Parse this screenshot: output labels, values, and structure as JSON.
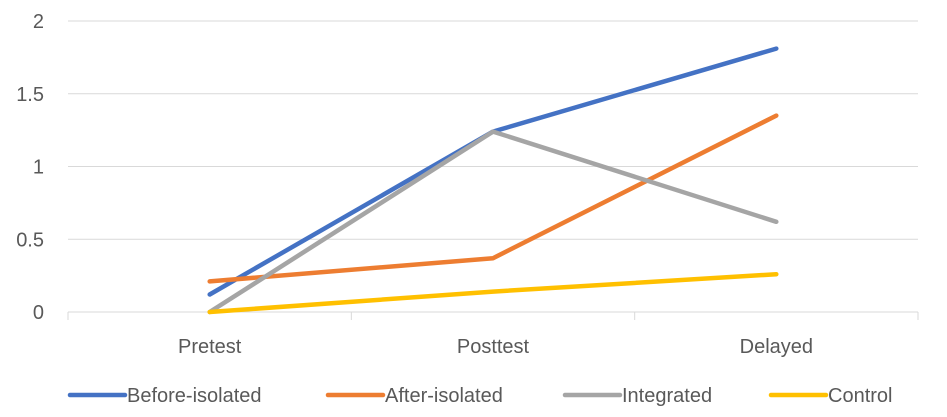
{
  "chart_data": {
    "type": "line",
    "categories": [
      "Pretest",
      "Posttest",
      "Delayed"
    ],
    "series": [
      {
        "name": "Before-isolated",
        "values": [
          0.12,
          1.24,
          1.81
        ],
        "color": "#4472C4"
      },
      {
        "name": "After-isolated",
        "values": [
          0.21,
          0.37,
          1.35
        ],
        "color": "#ED7D31"
      },
      {
        "name": "Integrated",
        "values": [
          0.0,
          1.24,
          0.62
        ],
        "color": "#A5A5A5"
      },
      {
        "name": "Control",
        "values": [
          0.0,
          0.14,
          0.26
        ],
        "color": "#FFC000"
      }
    ],
    "y_ticks": [
      "0",
      "0.5",
      "1",
      "1.5",
      "2"
    ],
    "ylim": [
      0,
      2
    ],
    "grid": true,
    "legend_position": "bottom"
  }
}
